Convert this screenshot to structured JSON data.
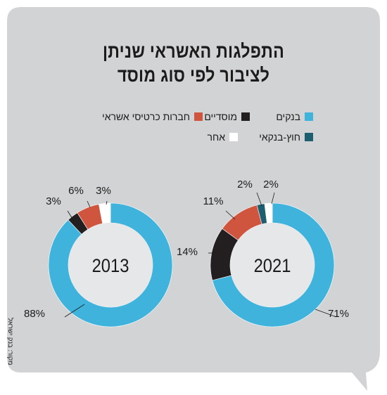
{
  "title_lines": [
    "התפלגות האשראי שניתן",
    "לציבור לפי סוג מוסד"
  ],
  "legend": [
    {
      "label": "בנקים",
      "color": "#3fb3dc"
    },
    {
      "label": "מוסדיים",
      "color": "#231f20"
    },
    {
      "label": "חברות כרטיסי אשראי",
      "color": "#d0553f"
    },
    {
      "label": "חוץ-בנקאי",
      "color": "#1d5e70"
    },
    {
      "label": "אחר",
      "color": "#ffffff"
    }
  ],
  "source": "מקור: בנק ישראל",
  "colors": {
    "background": "#d1d3d4",
    "center": "#e6e7e8"
  },
  "chart_data": [
    {
      "type": "pie",
      "center_label": "2013",
      "slices": [
        {
          "category": "בנקים",
          "value": 88,
          "label": "88%"
        },
        {
          "category": "מוסדיים",
          "value": 3,
          "label": "3%"
        },
        {
          "category": "חברות כרטיסי אשראי",
          "value": 6,
          "label": "6%"
        },
        {
          "category": "אחר",
          "value": 3,
          "label": "3%"
        }
      ]
    },
    {
      "type": "pie",
      "center_label": "2021",
      "slices": [
        {
          "category": "בנקים",
          "value": 71,
          "label": "71%"
        },
        {
          "category": "מוסדיים",
          "value": 14,
          "label": "14%"
        },
        {
          "category": "חברות כרטיסי אשראי",
          "value": 11,
          "label": "11%"
        },
        {
          "category": "חוץ-בנקאי",
          "value": 2,
          "label": "2%"
        },
        {
          "category": "אחר",
          "value": 2,
          "label": "2%"
        }
      ]
    }
  ]
}
